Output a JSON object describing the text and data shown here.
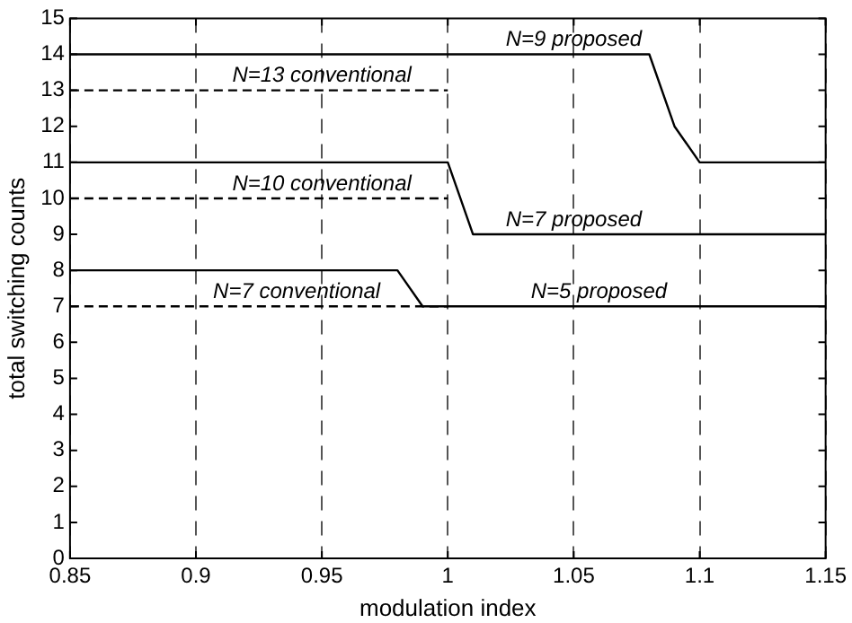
{
  "chart_data": {
    "type": "line",
    "xlabel": "modulation index",
    "ylabel": "total switching counts",
    "xlim": [
      0.85,
      1.15
    ],
    "xticks": [
      0.85,
      0.9,
      0.95,
      1,
      1.05,
      1.1,
      1.15
    ],
    "ylim": [
      0,
      15
    ],
    "yticks": [
      0,
      1,
      2,
      3,
      4,
      5,
      6,
      7,
      8,
      9,
      10,
      11,
      12,
      13,
      14,
      15
    ],
    "grid": "x",
    "legend": false,
    "marker": "none",
    "series": [
      {
        "color": "#000000",
        "line_style": "dashed",
        "x": [
          0.85,
          1.0
        ],
        "values": [
          13,
          13
        ]
      },
      {
        "color": "#000000",
        "line_style": "dashed",
        "x": [
          0.85,
          1.0
        ],
        "values": [
          10,
          10
        ]
      },
      {
        "color": "#000000",
        "line_style": "dashed",
        "x": [
          0.85,
          1.0
        ],
        "values": [
          7,
          7
        ]
      },
      {
        "color": "#000000",
        "line_style": "solid",
        "x": [
          0.85,
          1.08,
          1.09,
          1.1,
          1.15
        ],
        "values": [
          14,
          14,
          12,
          11,
          11
        ]
      },
      {
        "color": "#000000",
        "line_style": "solid",
        "x": [
          0.85,
          1.0,
          1.01,
          1.15
        ],
        "values": [
          11,
          11,
          9,
          9
        ]
      },
      {
        "color": "#000000",
        "line_style": "solid",
        "x": [
          0.85,
          0.98,
          0.99,
          1.15
        ],
        "values": [
          8,
          8,
          7,
          7
        ]
      }
    ],
    "annotations": [
      {
        "text": "N=13 conventional",
        "x": 0.95,
        "y": 13
      },
      {
        "text": "N=10 conventional",
        "x": 0.95,
        "y": 10
      },
      {
        "text": "N=7 conventional",
        "x": 0.94,
        "y": 7
      },
      {
        "text": "N=9 proposed",
        "x": 1.05,
        "y": 14
      },
      {
        "text": "N=7 proposed",
        "x": 1.05,
        "y": 9
      },
      {
        "text": "N=5 proposed",
        "x": 1.06,
        "y": 7
      }
    ]
  }
}
